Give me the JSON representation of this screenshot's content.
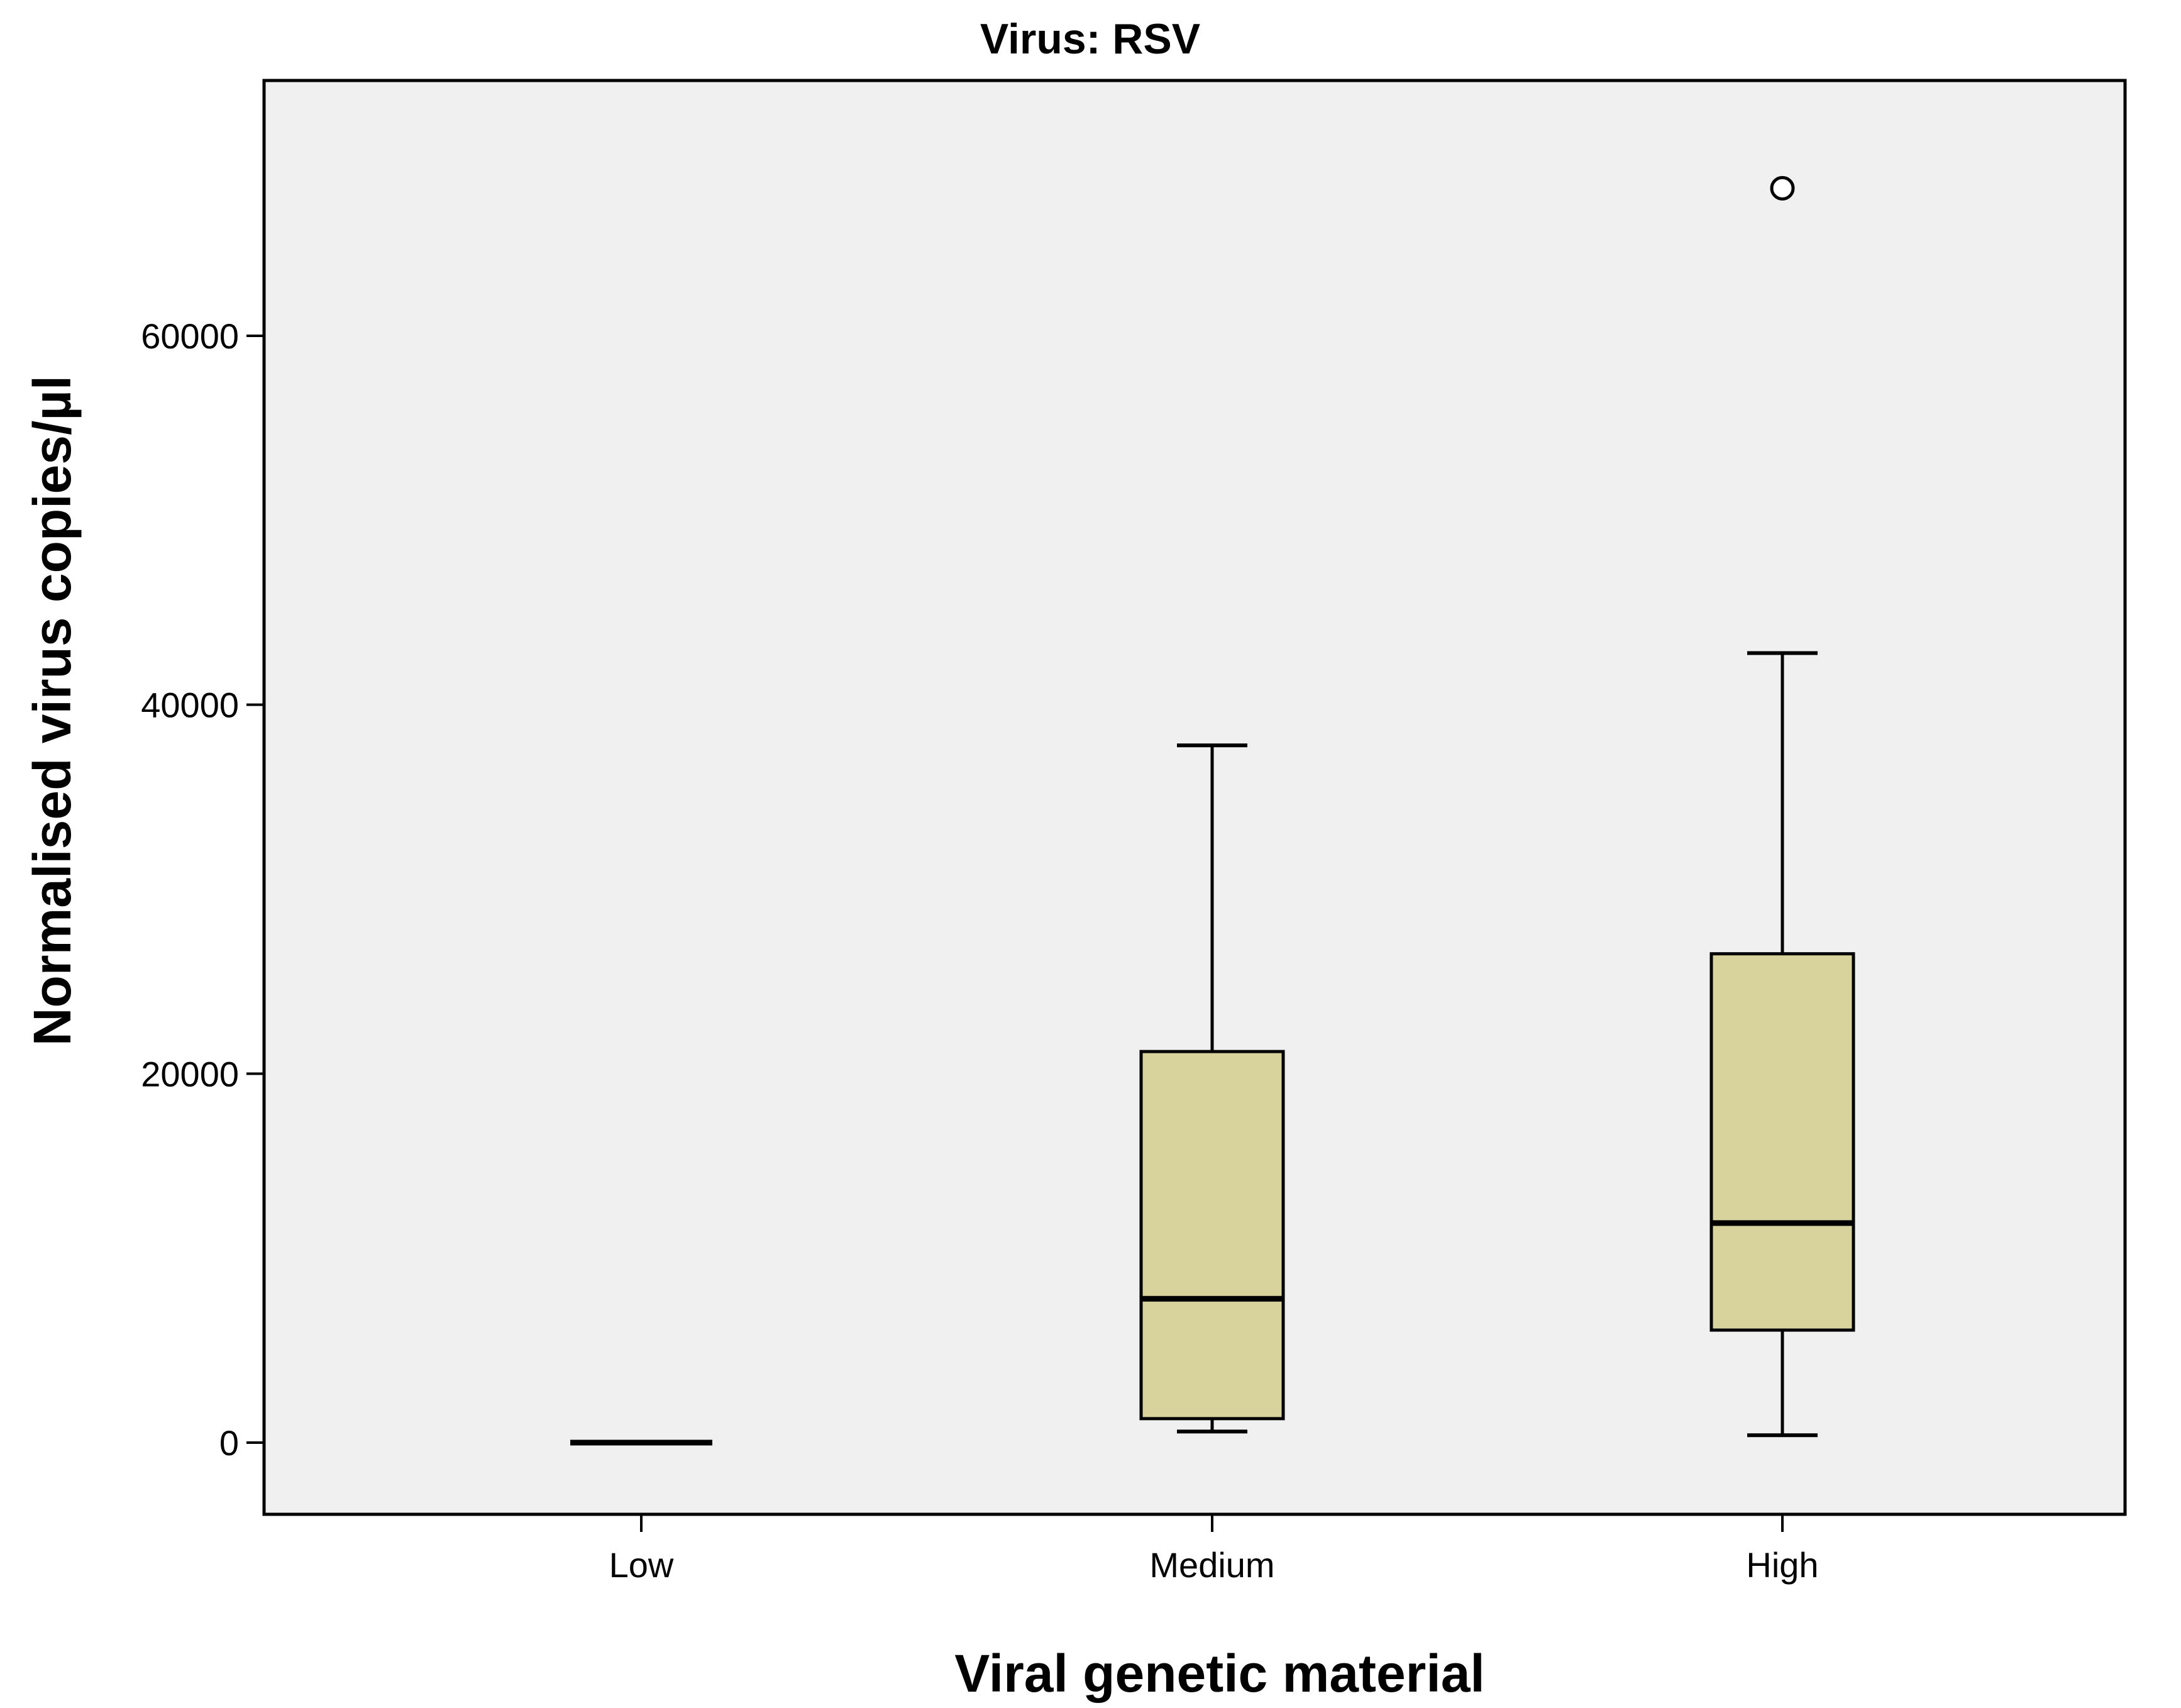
{
  "chart_data": {
    "type": "boxplot",
    "title": "Virus: RSV",
    "xlabel": "Viral genetic material",
    "ylabel": "Normalised virus copies/µl",
    "ylim": [
      -4000,
      73500
    ],
    "yticks": [
      0,
      20000,
      40000,
      60000
    ],
    "ytick_labels": [
      "0",
      "20000",
      "40000",
      "60000"
    ],
    "categories": [
      "Low",
      "Medium",
      "High"
    ],
    "boxes": [
      {
        "category": "Low",
        "whisker_low": 0,
        "q1": 0,
        "median": 0,
        "q3": 0,
        "whisker_high": 0,
        "outliers": []
      },
      {
        "category": "Medium",
        "whisker_low": 600,
        "q1": 1300,
        "median": 7800,
        "q3": 21200,
        "whisker_high": 37800,
        "outliers": []
      },
      {
        "category": "High",
        "whisker_low": 400,
        "q1": 6100,
        "median": 11900,
        "q3": 26500,
        "whisker_high": 42800,
        "outliers": [
          68000
        ]
      }
    ],
    "grid": false,
    "colors": {
      "box_fill": "#d8d29c",
      "plot_background": "#f0f0f0",
      "stroke": "#000000",
      "outlier_fill": "#ffffff"
    }
  }
}
